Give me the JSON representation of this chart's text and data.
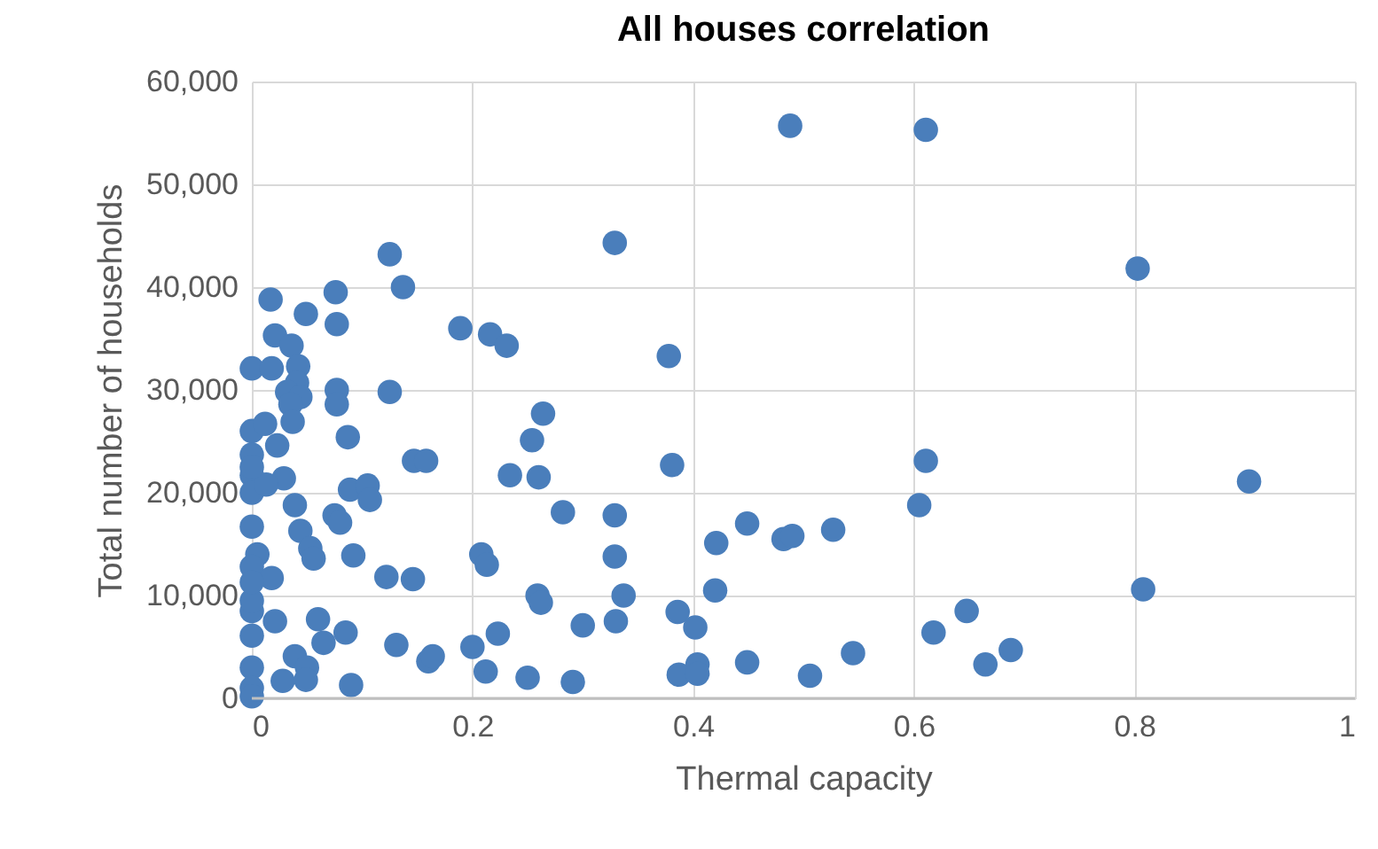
{
  "chart_data": {
    "type": "scatter",
    "title": "All houses correlation",
    "xlabel": "Thermal capacity",
    "ylabel": "Total number of households",
    "xlim": [
      0,
      1
    ],
    "xticks": [
      0,
      0.2,
      0.4,
      0.6,
      0.8,
      1
    ],
    "ylim": [
      0,
      60000
    ],
    "yticks": [
      {
        "value": 0,
        "label": "0"
      },
      {
        "value": 10000,
        "label": "10,000"
      },
      {
        "value": 20000,
        "label": "20,000"
      },
      {
        "value": 30000,
        "label": "30,000"
      },
      {
        "value": 40000,
        "label": "40,000"
      },
      {
        "value": 50000,
        "label": "50,000"
      },
      {
        "value": 60000,
        "label": "60,000"
      }
    ],
    "grid": true,
    "marker": "circle",
    "series": [
      {
        "color": "#4a7ebb",
        "x": [
          0.488,
          0.125,
          0.329,
          0.076,
          0.137,
          0.077,
          0.189,
          0.216,
          0.231,
          0.378,
          0.077,
          0.077,
          0.125,
          0.087,
          0.264,
          0.254,
          0.147,
          0.158,
          0.234,
          0.26,
          0.381,
          0.089,
          0.105,
          0.107,
          0.075,
          0.08,
          0.611,
          0.803,
          0.611,
          0.904,
          0.605,
          0.527,
          0.808,
          0.648,
          0.618,
          0.545,
          0.688,
          0.665,
          0.092,
          0.122,
          0.146,
          0.208,
          0.213,
          0.282,
          0.329,
          0.329,
          0.259,
          0.262,
          0.337,
          0.33,
          0.3,
          0.386,
          0.402,
          0.421,
          0.449,
          0.482,
          0.49,
          0.42,
          0.449,
          0.506,
          0.387,
          0.404,
          0.404,
          0.25,
          0.291,
          0.212,
          0.223,
          0.2,
          0.131,
          0.16,
          0.164,
          0.085,
          0.09,
          0.017,
          0.049,
          0.021,
          0.036,
          0,
          0.018,
          0.042,
          0.041,
          0.032,
          0.044,
          0.035,
          0.037,
          0,
          0.012,
          0.023,
          0,
          0.029,
          0,
          0,
          0.013,
          0.039,
          0,
          0.044,
          0.053,
          0.056,
          0.005,
          0,
          0.018,
          0,
          0.021,
          0.06,
          0,
          0.065,
          0.039,
          0.05,
          0,
          0,
          0,
          0.028,
          0.049,
          0,
          0,
          0
        ],
        "values": [
          55700,
          43200,
          44300,
          39500,
          40000,
          36400,
          36000,
          35400,
          34300,
          33300,
          30000,
          28600,
          29800,
          25400,
          27700,
          25100,
          23100,
          23100,
          21700,
          21500,
          22700,
          20300,
          20700,
          19300,
          17800,
          17100,
          55300,
          41800,
          23100,
          21100,
          18800,
          16400,
          10600,
          8500,
          6400,
          4400,
          4700,
          3300,
          13900,
          11800,
          11600,
          14000,
          13000,
          18100,
          17800,
          13800,
          10000,
          9300,
          10000,
          7500,
          7100,
          8400,
          6900,
          15100,
          17000,
          15500,
          15800,
          10500,
          3500,
          2200,
          2300,
          3300,
          2400,
          2000,
          1600,
          2600,
          6300,
          5000,
          5200,
          3600,
          4100,
          6400,
          1300,
          38800,
          37400,
          35300,
          34300,
          32100,
          32100,
          32300,
          30700,
          29800,
          29300,
          28600,
          26900,
          26000,
          26700,
          24600,
          23700,
          21400,
          21700,
          20000,
          20800,
          18800,
          16700,
          16300,
          14600,
          13600,
          14000,
          12800,
          11700,
          8500,
          7500,
          7700,
          6100,
          5400,
          4100,
          3000,
          3000,
          1000,
          200,
          1700,
          1800,
          22500,
          9500,
          11300
        ]
      }
    ]
  }
}
